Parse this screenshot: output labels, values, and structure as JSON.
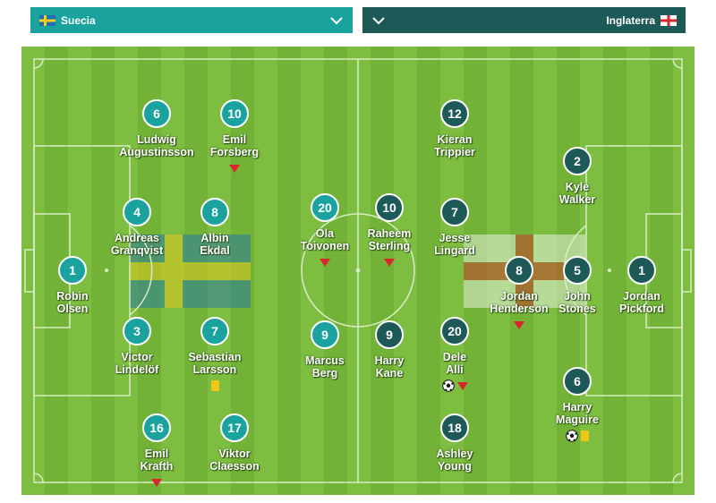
{
  "home_team": {
    "name": "Suecia",
    "color": "#1aa39e",
    "flag": "sweden-flag"
  },
  "away_team": {
    "name": "Inglaterra",
    "color": "#1d5a57",
    "flag": "england-flag"
  },
  "home_players": [
    {
      "number": "1",
      "name": "Robin\nOlsen",
      "events": []
    },
    {
      "number": "6",
      "name": "Ludwig\nAugustinsson",
      "events": []
    },
    {
      "number": "4",
      "name": "Andreas\nGranqvist",
      "events": []
    },
    {
      "number": "3",
      "name": "Victor\nLindelöf",
      "events": []
    },
    {
      "number": "16",
      "name": "Emil\nKrafth",
      "events": [
        "sub"
      ]
    },
    {
      "number": "10",
      "name": "Emil\nForsberg",
      "events": [
        "sub"
      ]
    },
    {
      "number": "8",
      "name": "Albin\nEkdal",
      "events": []
    },
    {
      "number": "7",
      "name": "Sebastian\nLarsson",
      "events": [
        "yellow-card"
      ]
    },
    {
      "number": "17",
      "name": "Viktor\nClaesson",
      "events": []
    },
    {
      "number": "20",
      "name": "Ola\nToivonen",
      "events": [
        "sub"
      ]
    },
    {
      "number": "9",
      "name": "Marcus\nBerg",
      "events": []
    }
  ],
  "away_players": [
    {
      "number": "1",
      "name": "Jordan\nPickford",
      "events": []
    },
    {
      "number": "2",
      "name": "Kyle\nWalker",
      "events": []
    },
    {
      "number": "5",
      "name": "John\nStones",
      "events": []
    },
    {
      "number": "6",
      "name": "Harry\nMaguire",
      "events": [
        "goal",
        "yellow-card"
      ]
    },
    {
      "number": "8",
      "name": "Jordan\nHenderson",
      "events": [
        "sub"
      ]
    },
    {
      "number": "12",
      "name": "Kieran\nTrippier",
      "events": []
    },
    {
      "number": "7",
      "name": "Jesse\nLingard",
      "events": []
    },
    {
      "number": "20",
      "name": "Dele\nAlli",
      "events": [
        "goal",
        "sub"
      ]
    },
    {
      "number": "18",
      "name": "Ashley\nYoung",
      "events": []
    },
    {
      "number": "10",
      "name": "Raheem\nSterling",
      "events": [
        "sub"
      ]
    },
    {
      "number": "9",
      "name": "Harry\nKane",
      "events": []
    }
  ]
}
